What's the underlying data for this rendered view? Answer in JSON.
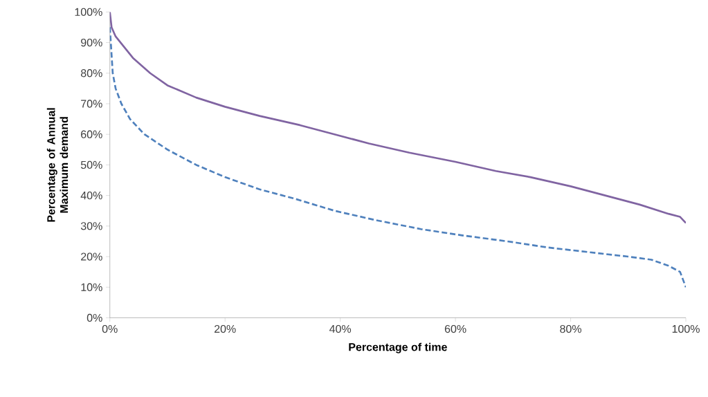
{
  "chart_data": {
    "type": "line",
    "xlabel": "Percentage of time",
    "ylabel": "Percentage of Annual Maximum demand",
    "xlim": [
      0,
      100
    ],
    "ylim": [
      0,
      100
    ],
    "xticks": [
      {
        "value": 0,
        "label": "0%"
      },
      {
        "value": 20,
        "label": "20%"
      },
      {
        "value": 40,
        "label": "40%"
      },
      {
        "value": 60,
        "label": "60%"
      },
      {
        "value": 80,
        "label": "80%"
      },
      {
        "value": 100,
        "label": "100%"
      }
    ],
    "yticks": [
      {
        "value": 0,
        "label": "0%"
      },
      {
        "value": 10,
        "label": "10%"
      },
      {
        "value": 20,
        "label": "20%"
      },
      {
        "value": 30,
        "label": "30%"
      },
      {
        "value": 40,
        "label": "40%"
      },
      {
        "value": 50,
        "label": "50%"
      },
      {
        "value": 60,
        "label": "60%"
      },
      {
        "value": 70,
        "label": "70%"
      },
      {
        "value": 80,
        "label": "80%"
      },
      {
        "value": 90,
        "label": "90%"
      },
      {
        "value": 100,
        "label": "100%"
      }
    ],
    "grid": false,
    "legend": false,
    "marker": "none",
    "series": [
      {
        "color": "#4f81bd",
        "line_style": "dashed",
        "x": [
          0,
          0.5,
          1,
          2,
          3.5,
          6,
          10,
          15,
          20,
          26,
          32,
          39,
          46,
          54,
          61,
          69,
          76,
          83,
          90,
          94,
          97,
          99,
          100
        ],
        "values": [
          95,
          80,
          75,
          70,
          65,
          60,
          55,
          50,
          46,
          42,
          39,
          35,
          32,
          29,
          27,
          25,
          23,
          21.5,
          20,
          19,
          17,
          15,
          10
        ]
      },
      {
        "color": "#8064a2",
        "line_style": "solid",
        "x": [
          0,
          0.3,
          1,
          4,
          7,
          10,
          15,
          20,
          26,
          33,
          39,
          45,
          52,
          60,
          67,
          73,
          80,
          86,
          92,
          97,
          99,
          100
        ],
        "values": [
          100,
          95,
          92,
          85,
          80,
          76,
          72,
          69,
          66,
          63,
          60,
          57,
          54,
          51,
          48,
          46,
          43,
          40,
          37,
          34,
          33,
          31
        ]
      }
    ]
  }
}
